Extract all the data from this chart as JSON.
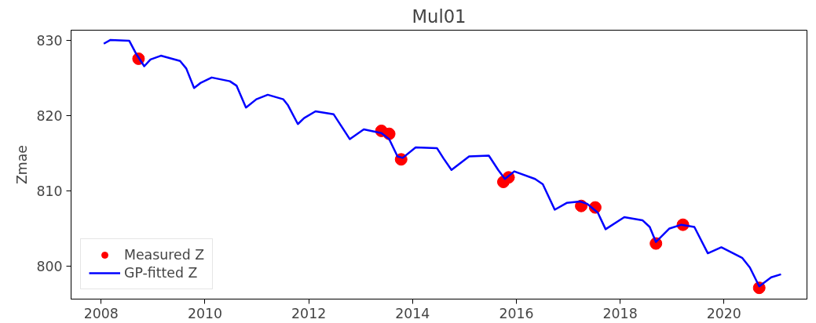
{
  "chart_data": {
    "type": "line",
    "title": "Mul01",
    "ylabel": "Zmae",
    "xlim": [
      2007.42,
      2021.6
    ],
    "ylim": [
      795.6,
      831.4
    ],
    "xticks": [
      2008,
      2010,
      2012,
      2014,
      2016,
      2018,
      2020
    ],
    "yticks": [
      800,
      810,
      820,
      830
    ],
    "grid": false,
    "legend": "bottom left",
    "series": [
      {
        "name": "Measured Z",
        "type": "scatter",
        "marker": "circle",
        "color": "#ff0000",
        "x": [
          2008.72,
          2013.4,
          2013.55,
          2013.78,
          2015.75,
          2015.85,
          2017.25,
          2017.52,
          2018.69,
          2019.21,
          2020.68
        ],
        "values": [
          827.6,
          818.0,
          817.6,
          814.2,
          811.2,
          811.8,
          808.0,
          807.8,
          803.0,
          805.5,
          797.1
        ]
      },
      {
        "name": "GP-fitted Z",
        "color": "#0000ff",
        "line_style": "solid",
        "x": [
          2008.05,
          2008.18,
          2008.54,
          2008.67,
          2008.83,
          2008.95,
          2009.15,
          2009.52,
          2009.64,
          2009.79,
          2009.92,
          2010.13,
          2010.48,
          2010.61,
          2010.79,
          2010.99,
          2011.21,
          2011.51,
          2011.6,
          2011.79,
          2011.91,
          2012.13,
          2012.48,
          2012.63,
          2012.79,
          2013.06,
          2013.4,
          2013.55,
          2013.71,
          2013.81,
          2014.06,
          2014.47,
          2014.6,
          2014.75,
          2015.09,
          2015.47,
          2015.65,
          2015.78,
          2015.96,
          2016.36,
          2016.51,
          2016.74,
          2016.97,
          2017.23,
          2017.36,
          2017.57,
          2017.72,
          2018.08,
          2018.43,
          2018.57,
          2018.69,
          2018.95,
          2019.18,
          2019.43,
          2019.69,
          2019.95,
          2020.35,
          2020.5,
          2020.68,
          2020.91,
          2021.1
        ],
        "values": [
          829.6,
          830.1,
          830.0,
          828.3,
          826.6,
          827.5,
          828.0,
          827.3,
          826.3,
          823.7,
          824.4,
          825.1,
          824.6,
          824.0,
          821.1,
          822.2,
          822.8,
          822.2,
          821.4,
          818.9,
          819.7,
          820.6,
          820.2,
          818.6,
          816.9,
          818.2,
          817.7,
          816.9,
          814.6,
          814.4,
          815.8,
          815.7,
          814.3,
          812.8,
          814.6,
          814.7,
          812.8,
          811.6,
          812.6,
          811.6,
          810.9,
          807.5,
          808.4,
          808.6,
          808.3,
          807.1,
          804.9,
          806.5,
          806.1,
          805.2,
          803.2,
          805.0,
          805.5,
          805.2,
          801.7,
          802.5,
          801.1,
          799.8,
          797.3,
          798.5,
          798.9
        ]
      }
    ]
  }
}
